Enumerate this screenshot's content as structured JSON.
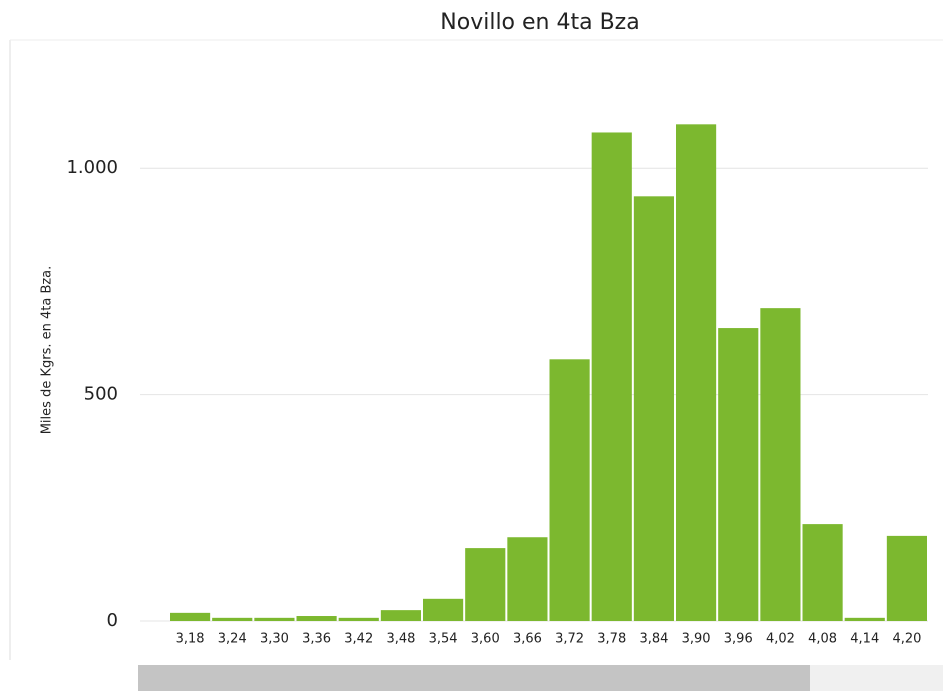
{
  "chart_data": {
    "type": "bar",
    "title": "Novillo en 4ta Bza",
    "y_label": "Miles de Kgrs. en 4ta Bza.",
    "categories": [
      "3,18",
      "3,24",
      "3,30",
      "3,36",
      "3,42",
      "3,48",
      "3,54",
      "3,60",
      "3,66",
      "3,72",
      "3,78",
      "3,84",
      "3,90",
      "3,96",
      "4,02",
      "4,08",
      "4,14",
      "4,20"
    ],
    "values": [
      18,
      7,
      7,
      11,
      7,
      24,
      49,
      161,
      185,
      578,
      1079,
      938,
      1097,
      647,
      691,
      214,
      7,
      188
    ],
    "color": "#7cb82f",
    "ylim": [
      0,
      1270
    ],
    "yticks": [
      0,
      500,
      {
        "value": 1000,
        "label": "1.000"
      }
    ],
    "grid": true
  }
}
